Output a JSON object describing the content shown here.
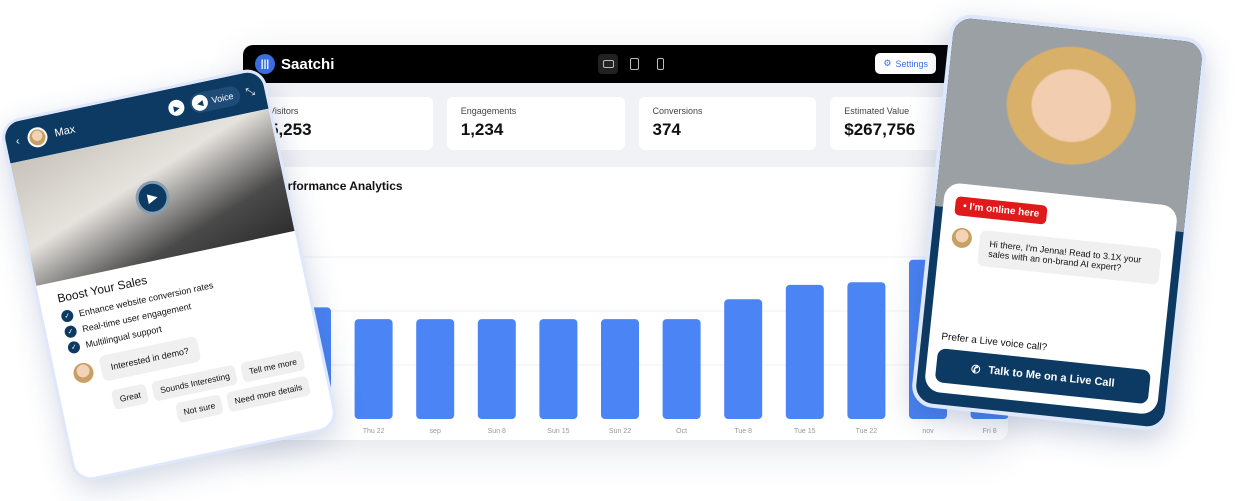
{
  "dashboard": {
    "brand": "Saatchi",
    "settings_label": "Settings",
    "devices": [
      "desktop-icon",
      "tablet-icon",
      "mobile-icon"
    ],
    "stats": [
      {
        "label": "Visitors",
        "value": "5,253"
      },
      {
        "label": "Engagements",
        "value": "1,234"
      },
      {
        "label": "Conversions",
        "value": "374"
      },
      {
        "label": "Estimated Value",
        "value": "$267,756"
      }
    ],
    "panel_title": "Performance Analytics"
  },
  "chart_data": {
    "type": "bar",
    "title": "Performance Analytics",
    "categories": [
      "",
      "Thu 22",
      "sep",
      "Sun 8",
      "Sun 15",
      "Sun 22",
      "Oct",
      "Tue 8",
      "Tue 15",
      "Tue 22",
      "nov",
      "Fri 8"
    ],
    "values": [
      124,
      111,
      111,
      111,
      111,
      111,
      111,
      133,
      149,
      152,
      177,
      180
    ],
    "bar_color": "#4a84f5",
    "grid": true,
    "ylabel": "",
    "xlabel": ""
  },
  "phone": {
    "agent_name": "Max",
    "voice_label": "Voice",
    "heading": "Boost Your Sales",
    "features": [
      "Enhance website conversion rates",
      "Real-time user engagement",
      "Multilingual support"
    ],
    "message": "Interested in demo?",
    "chips": [
      "Great",
      "Sounds Interesting",
      "Tell me more",
      "Not sure",
      "Need more details"
    ]
  },
  "jenna": {
    "status": "I'm online here",
    "message": "Hi there, I'm Jenna! Read to 3.1X your sales with an on-brand AI expert?",
    "prefer": "Prefer a Live voice call?",
    "call_button": "Talk to Me on a Live Call"
  },
  "colors": {
    "navy": "#0d3a63",
    "accent": "#4a84f5",
    "online": "#e01a1a"
  }
}
